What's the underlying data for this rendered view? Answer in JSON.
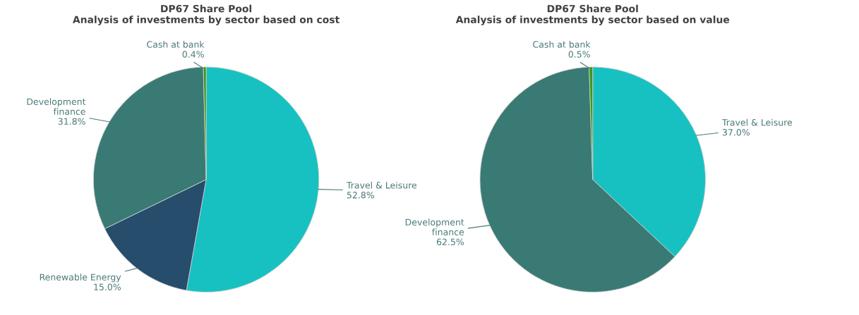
{
  "chart_data": [
    {
      "type": "pie",
      "title": "DP67 Share Pool\nAnalysis of investments by sector based on cost",
      "categories": [
        "Travel & Leisure",
        "Renewable Energy",
        "Development finance",
        "Cash at bank"
      ],
      "values": [
        52.8,
        15.0,
        31.8,
        0.4
      ],
      "colors": [
        "#17c1c1",
        "#264d6b",
        "#3a7a74",
        "#3a9a1a"
      ],
      "value_labels": [
        "52.8%",
        "15.0%",
        "31.8%",
        "0.4%"
      ]
    },
    {
      "type": "pie",
      "title": "DP67 Share Pool\nAnalysis of investments by sector based on value",
      "categories": [
        "Travel & Leisure",
        "Development finance",
        "Cash at bank"
      ],
      "values": [
        37.0,
        62.5,
        0.5
      ],
      "colors": [
        "#17c1c1",
        "#3a7a74",
        "#3a9a1a"
      ],
      "value_labels": [
        "37.0%",
        "62.5%",
        "0.5%"
      ]
    }
  ]
}
